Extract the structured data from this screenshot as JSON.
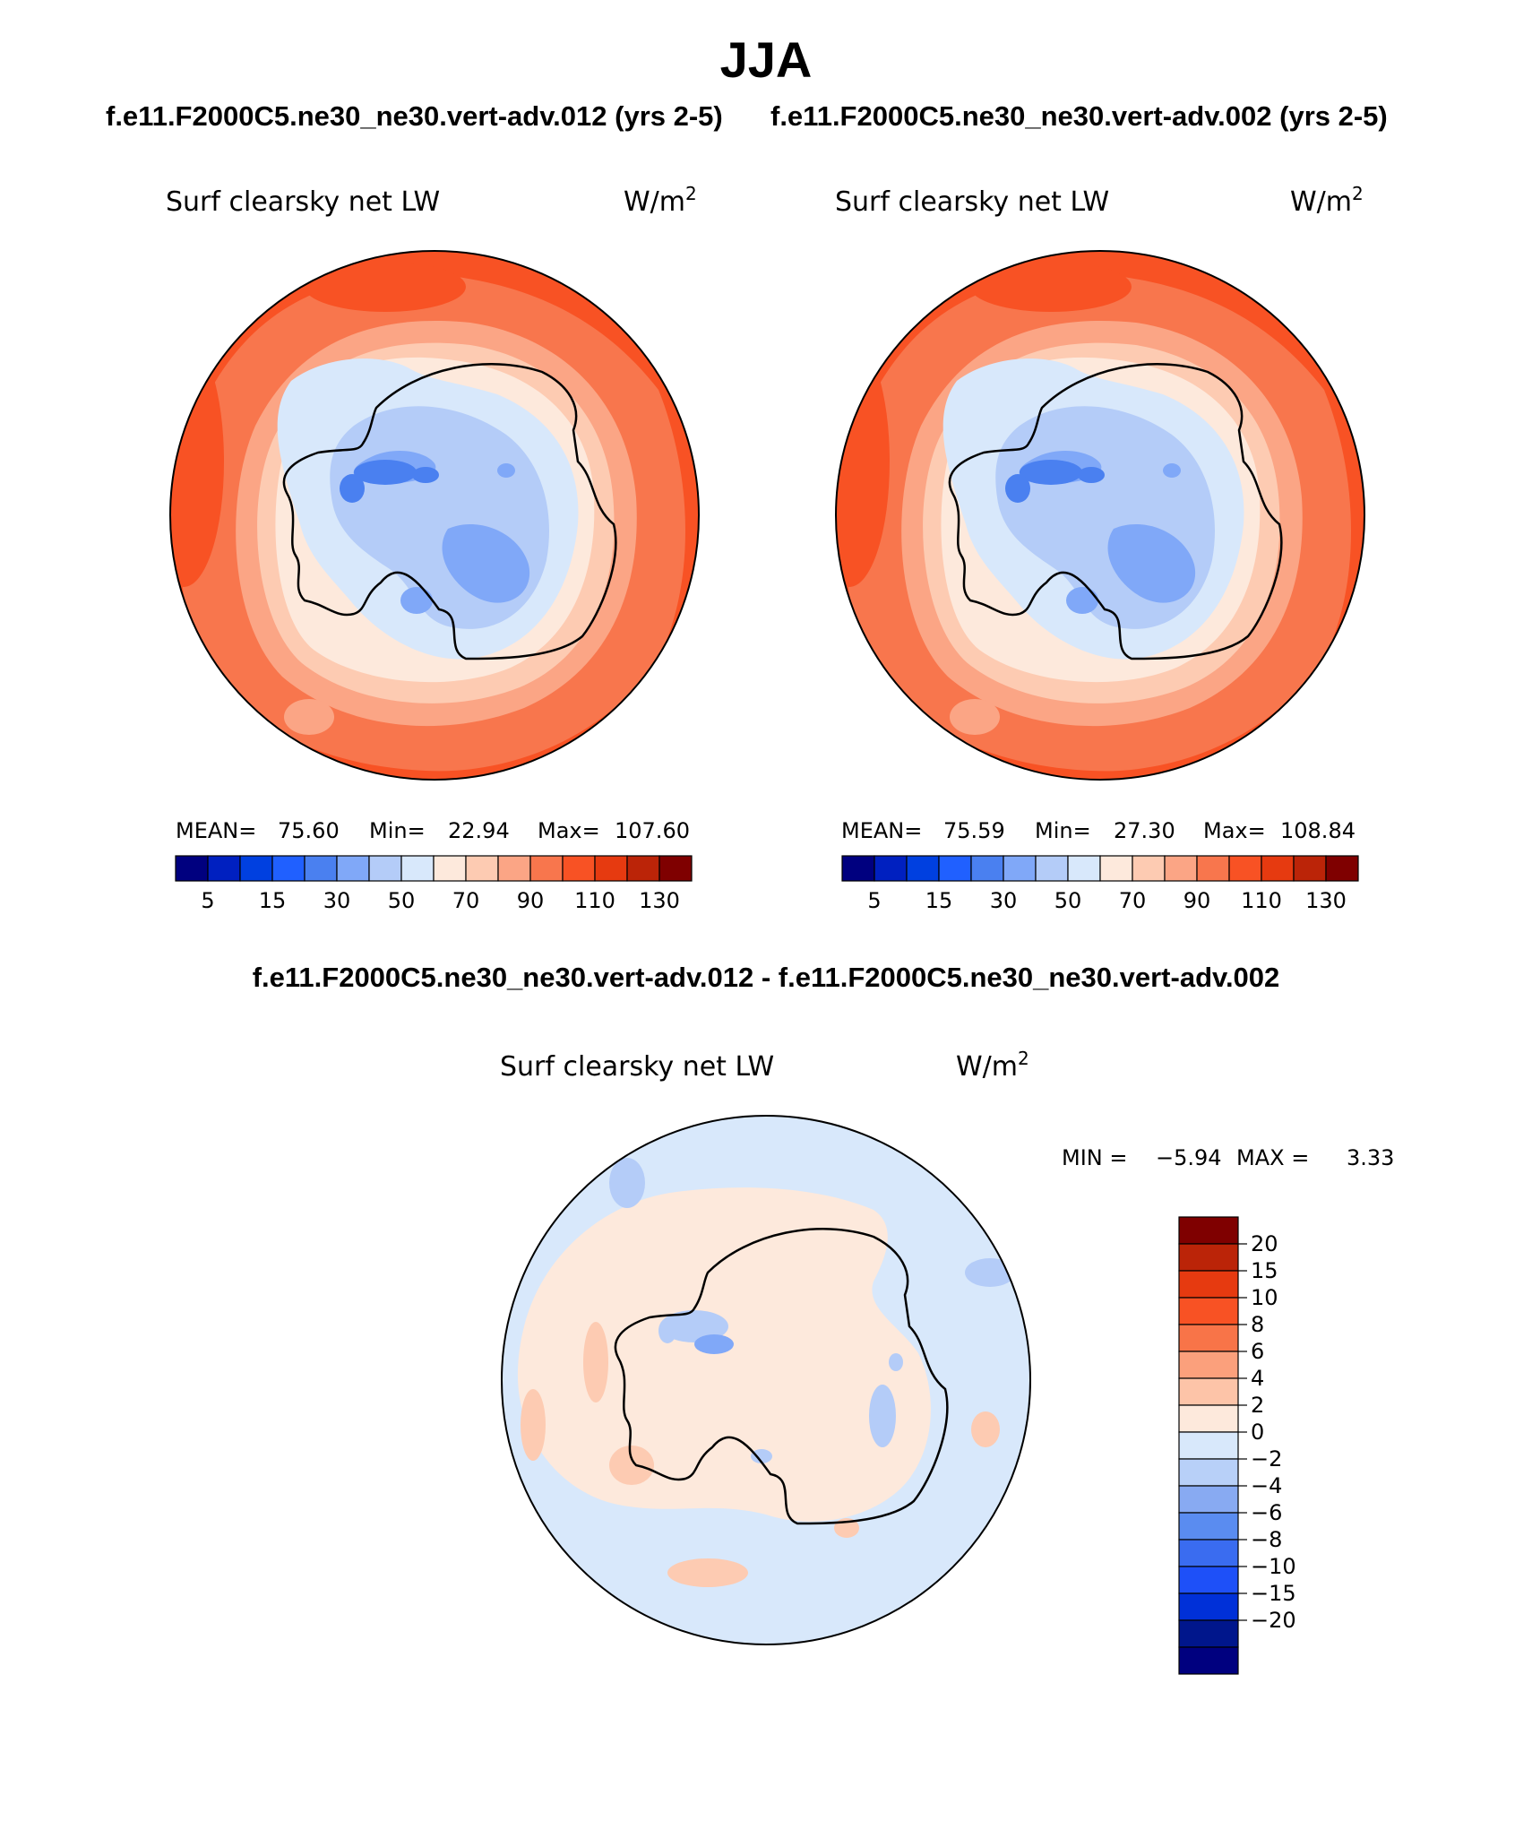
{
  "figure": {
    "season": "JJA",
    "run_a_title": "f.e11.F2000C5.ne30_ne30.vert-adv.012 (yrs 2-5)",
    "run_b_title": "f.e11.F2000C5.ne30_ne30.vert-adv.002 (yrs 2-5)",
    "diff_title": "f.e11.F2000C5.ne30_ne30.vert-adv.012 - f.e11.F2000C5.ne30_ne30.vert-adv.002"
  },
  "colors": {
    "abs_palette": [
      "#00007f",
      "#0020c0",
      "#0040e0",
      "#2060ff",
      "#4a80f0",
      "#80a8f8",
      "#b4ccf8",
      "#d8e8fb",
      "#fde9dc",
      "#fdcbb2",
      "#fba585",
      "#f8764d",
      "#f85224",
      "#e63a10",
      "#bb2408",
      "#7f0000"
    ],
    "diff_palette": [
      "#00007f",
      "#00168c",
      "#0030d8",
      "#1e50f8",
      "#3a6cf0",
      "#5a8cf0",
      "#88aaf2",
      "#b8d0f8",
      "#d8e8fb",
      "#fde9dc",
      "#fdc4a8",
      "#fba07c",
      "#f87448",
      "#f85224",
      "#e63a10",
      "#bb2408",
      "#7f0000"
    ]
  },
  "chart_data": [
    {
      "type": "heatmap",
      "projection": "south-polar-stereographic",
      "title": "Surf clearsky net LW",
      "units_prefix": "W/m",
      "units_exp": "2",
      "stats": {
        "mean_label": "MEAN=",
        "mean": "75.60",
        "min_label": "Min=",
        "min": "22.94",
        "max_label": "Max=",
        "max": "107.60"
      },
      "contour_levels": [
        5,
        10,
        15,
        20,
        30,
        40,
        50,
        60,
        70,
        80,
        90,
        100,
        110,
        120,
        130
      ],
      "colorbar_tick_labels": [
        "5",
        "15",
        "30",
        "50",
        "70",
        "90",
        "110",
        "130"
      ],
      "colorbar_orientation": "horizontal"
    },
    {
      "type": "heatmap",
      "projection": "south-polar-stereographic",
      "title": "Surf clearsky net LW",
      "units_prefix": "W/m",
      "units_exp": "2",
      "stats": {
        "mean_label": "MEAN=",
        "mean": "75.59",
        "min_label": "Min=",
        "min": "27.30",
        "max_label": "Max=",
        "max": "108.84"
      },
      "contour_levels": [
        5,
        10,
        15,
        20,
        30,
        40,
        50,
        60,
        70,
        80,
        90,
        100,
        110,
        120,
        130
      ],
      "colorbar_tick_labels": [
        "5",
        "15",
        "30",
        "50",
        "70",
        "90",
        "110",
        "130"
      ],
      "colorbar_orientation": "horizontal"
    },
    {
      "type": "heatmap",
      "projection": "south-polar-stereographic",
      "title": "Surf clearsky net LW",
      "units_prefix": "W/m",
      "units_exp": "2",
      "stats": {
        "min_label": "MIN =",
        "min": "−5.94",
        "max_label": "MAX =",
        "max": "3.33"
      },
      "contour_levels": [
        -20,
        -15,
        -10,
        -8,
        -6,
        -4,
        -2,
        0,
        2,
        4,
        6,
        8,
        10,
        15,
        20
      ],
      "colorbar_tick_labels": [
        "20",
        "15",
        "10",
        "8",
        "6",
        "4",
        "2",
        "0",
        "−2",
        "−4",
        "−6",
        "−8",
        "−10",
        "−15",
        "−20"
      ],
      "colorbar_orientation": "vertical"
    }
  ]
}
